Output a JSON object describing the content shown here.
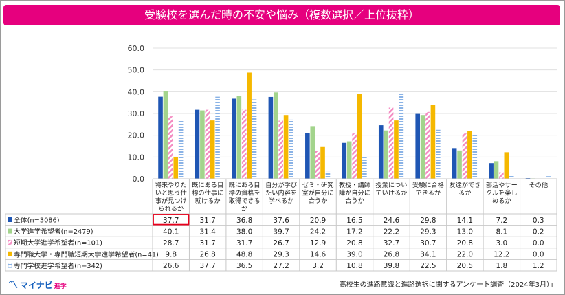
{
  "header": {
    "title": "受験校を選んだ時の不安や悩み（複数選択／上位抜粋）"
  },
  "footer": {
    "brand_mark": "〽",
    "brand_name": "マイナビ",
    "brand_sub": "進学",
    "source": "「高校生の進路意識と進路選択に関するアンケート調査（2024年3月）」"
  },
  "chart_data": {
    "type": "bar",
    "title": "受験校を選んだ時の不安や悩み（複数選択／上位抜粋）",
    "ylim": [
      0,
      60
    ],
    "yticks": [
      "0.0",
      "10.0",
      "20.0",
      "30.0",
      "40.0",
      "50.0",
      "60.0"
    ],
    "grid": true,
    "categories": [
      [
        "将来やりた",
        "いと思う仕",
        "事が見つけ",
        "られるか"
      ],
      [
        "既にある目",
        "標の仕事に",
        "就けるか"
      ],
      [
        "既にある目",
        "標の資格を",
        "取得できる",
        "か"
      ],
      [
        "自分が学び",
        "たい内容を",
        "学べるか"
      ],
      [
        "ゼミ・研究",
        "室が自分に",
        "合うか"
      ],
      [
        "教授・講師",
        "陣が自分に",
        "合うか"
      ],
      [
        "授業につい",
        "ていけるか"
      ],
      [
        "受験に合格",
        "できるか"
      ],
      [
        "友達ができ",
        "るか"
      ],
      [
        "部活やサー",
        "クルを楽し",
        "めるか"
      ],
      [
        "その他"
      ]
    ],
    "series": [
      {
        "name": "全体(n=3086)",
        "color": "#1f56b4",
        "values": [
          37.7,
          31.7,
          36.8,
          37.6,
          20.9,
          16.5,
          24.6,
          29.8,
          14.1,
          7.2,
          0.3
        ],
        "labels": [
          "37.7",
          "31.7",
          "36.8",
          "37.6",
          "20.9",
          "16.5",
          "24.6",
          "29.8",
          "14.1",
          "7.2",
          "0.3"
        ]
      },
      {
        "name": "大学進学希望者(n=2479)",
        "color": "#a3d48c",
        "values": [
          40.1,
          31.4,
          38.0,
          39.7,
          24.2,
          17.2,
          22.2,
          29.3,
          13.0,
          8.1,
          0.2
        ],
        "labels": [
          "40.1",
          "31.4",
          "38.0",
          "39.7",
          "24.2",
          "17.2",
          "22.2",
          "29.3",
          "13.0",
          "8.1",
          "0.2"
        ]
      },
      {
        "name": "短期大学進学希望者(n=101)",
        "color": "#f48cc2",
        "values": [
          28.7,
          31.7,
          31.7,
          26.7,
          12.9,
          20.8,
          32.7,
          30.7,
          20.8,
          3.0,
          0.0
        ],
        "labels": [
          "28.7",
          "31.7",
          "31.7",
          "26.7",
          "12.9",
          "20.8",
          "32.7",
          "30.7",
          "20.8",
          "3.0",
          "0.0"
        ]
      },
      {
        "name": "専門職大学・専門職短期大学進学希望者(n=41)",
        "color": "#f5b800",
        "values": [
          9.8,
          26.8,
          48.8,
          29.3,
          14.6,
          39.0,
          26.8,
          34.1,
          22.0,
          12.2,
          0.0
        ],
        "labels": [
          "9.8",
          "26.8",
          "48.8",
          "29.3",
          "14.6",
          "39.0",
          "26.8",
          "34.1",
          "22.0",
          "12.2",
          "0.0"
        ]
      },
      {
        "name": "専門学校進学希望者(n=342)",
        "color": "#8ab3e6",
        "values": [
          26.6,
          37.7,
          36.5,
          27.2,
          3.2,
          10.8,
          39.8,
          22.5,
          20.5,
          1.8,
          1.2
        ],
        "labels": [
          "26.6",
          "37.7",
          "36.5",
          "27.2",
          "3.2",
          "10.8",
          "39.8",
          "22.5",
          "20.5",
          "1.8",
          "1.2"
        ]
      }
    ],
    "highlight": {
      "series": 0,
      "category": 0
    },
    "legend": "data-table-left"
  }
}
